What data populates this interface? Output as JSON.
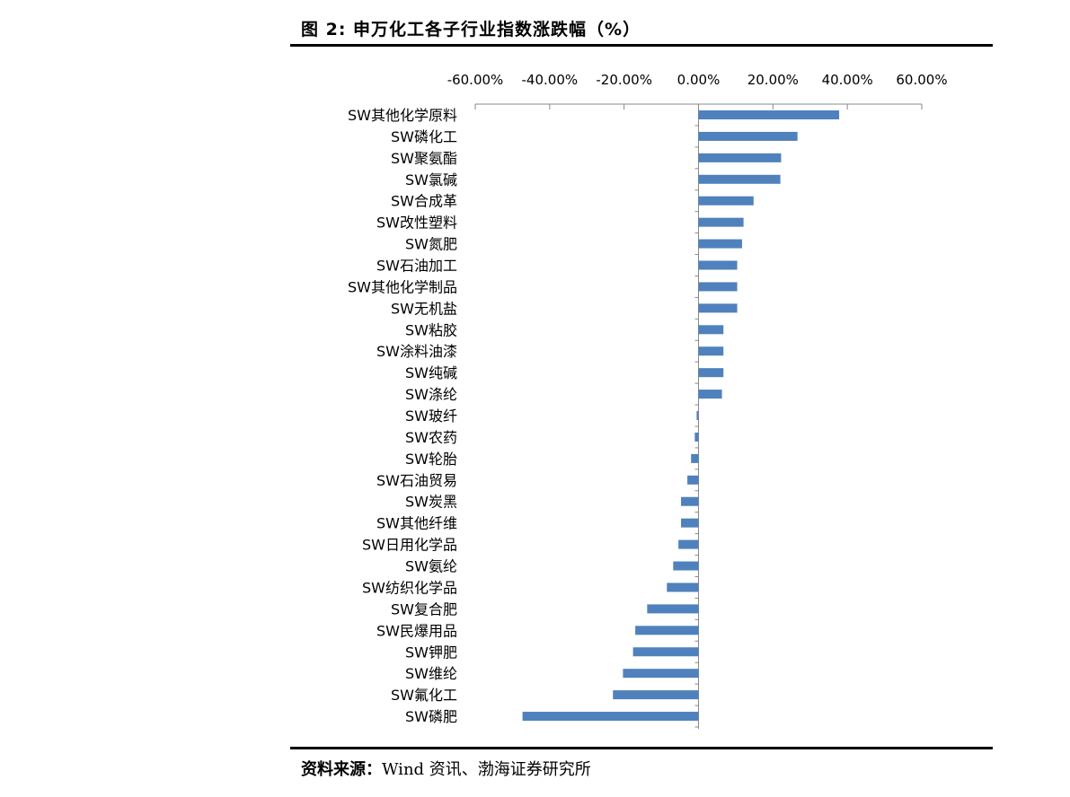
{
  "figure": {
    "title": "图 2:  申万化工各子行业指数涨跌幅（%）",
    "source_label": "资料来源：",
    "source_text": "Wind 资讯、渤海证券研究所"
  },
  "chart_data": {
    "type": "bar",
    "orientation": "horizontal",
    "title": "",
    "xlabel": "",
    "ylabel": "",
    "xlim": [
      -60,
      60
    ],
    "x_ticks": [
      -60,
      -40,
      -20,
      0,
      20,
      40,
      60
    ],
    "x_tick_labels": [
      "-60.00%",
      "-40.00%",
      "-20.00%",
      "0.00%",
      "20.00%",
      "40.00%",
      "60.00%"
    ],
    "x_axis_position": "top",
    "grid": false,
    "legend": false,
    "bar_color": "#4f81bd",
    "categories": [
      "SW其他化学原料",
      "SW磷化工",
      "SW聚氨酯",
      "SW氯碱",
      "SW合成革",
      "SW改性塑料",
      "SW氮肥",
      "SW石油加工",
      "SW其他化学制品",
      "SW无机盐",
      "SW粘胶",
      "SW涂料油漆",
      "SW纯碱",
      "SW涤纶",
      "SW玻纤",
      "SW农药",
      "SW轮胎",
      "SW石油贸易",
      "SW炭黑",
      "SW其他纤维",
      "SW日用化学品",
      "SW氨纶",
      "SW纺织化学品",
      "SW复合肥",
      "SW民爆用品",
      "SW钾肥",
      "SW维纶",
      "SW氟化工",
      "SW磷肥"
    ],
    "values": [
      37.8,
      26.6,
      22.2,
      22.0,
      14.8,
      12.1,
      11.7,
      10.4,
      10.4,
      10.4,
      6.7,
      6.7,
      6.7,
      6.3,
      -0.5,
      -1.0,
      -2.0,
      -3.0,
      -4.7,
      -4.7,
      -5.4,
      -6.8,
      -8.5,
      -13.8,
      -17.0,
      -17.6,
      -20.3,
      -23.0,
      -47.3
    ]
  }
}
